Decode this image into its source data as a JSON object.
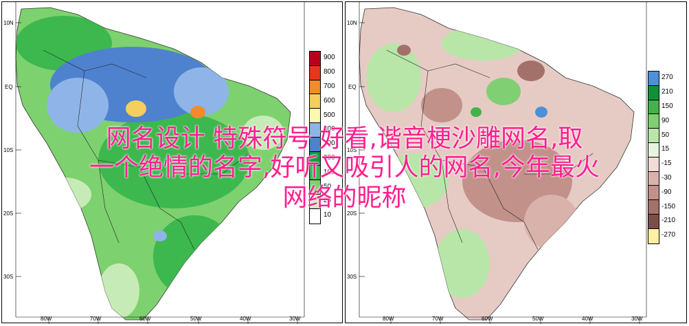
{
  "overlay_title": {
    "line1": "网名设计 特殊符号 好看,谐音梗沙雕网名,取",
    "line2": "一个绝情的名字,好听又吸引人的网名,今年最火",
    "line3": "网络的昵称"
  },
  "left_map": {
    "lat_labels": [
      "10N",
      "EQ",
      "10S",
      "20S",
      "30S"
    ],
    "lon_labels": [
      "80W",
      "70W",
      "60W",
      "50W",
      "40W",
      "30W"
    ],
    "legend": {
      "values": [
        "900",
        "800",
        "700",
        "600",
        "500",
        "400",
        "300",
        "200",
        "100",
        "50",
        "25",
        "10"
      ],
      "colors": [
        "#b8001e",
        "#e8361a",
        "#f48a2c",
        "#f6ce5e",
        "#fdf8b0",
        "#8fb5e8",
        "#4e82cf",
        "#0e9c40",
        "#3cb84e",
        "#7dd16e",
        "#c7ebb6",
        "#ffffff"
      ]
    }
  },
  "right_map": {
    "lat_labels": [
      "10N",
      "EQ",
      "10S",
      "20S",
      "30S"
    ],
    "lon_labels": [
      "80W",
      "70W",
      "60W",
      "50W",
      "40W",
      "30W"
    ],
    "legend": {
      "values": [
        "270",
        "210",
        "150",
        "90",
        "50",
        "15",
        "-15",
        "-30",
        "-90",
        "-150",
        "-210",
        "-270"
      ],
      "colors": [
        "#4e8fd8",
        "#11903a",
        "#43b24c",
        "#80cf73",
        "#b7e6a8",
        "#e5f5de",
        "#f1dcd7",
        "#d9b3ab",
        "#c1918a",
        "#a4716a",
        "#7a4f48",
        "#fdf0a0"
      ]
    }
  }
}
